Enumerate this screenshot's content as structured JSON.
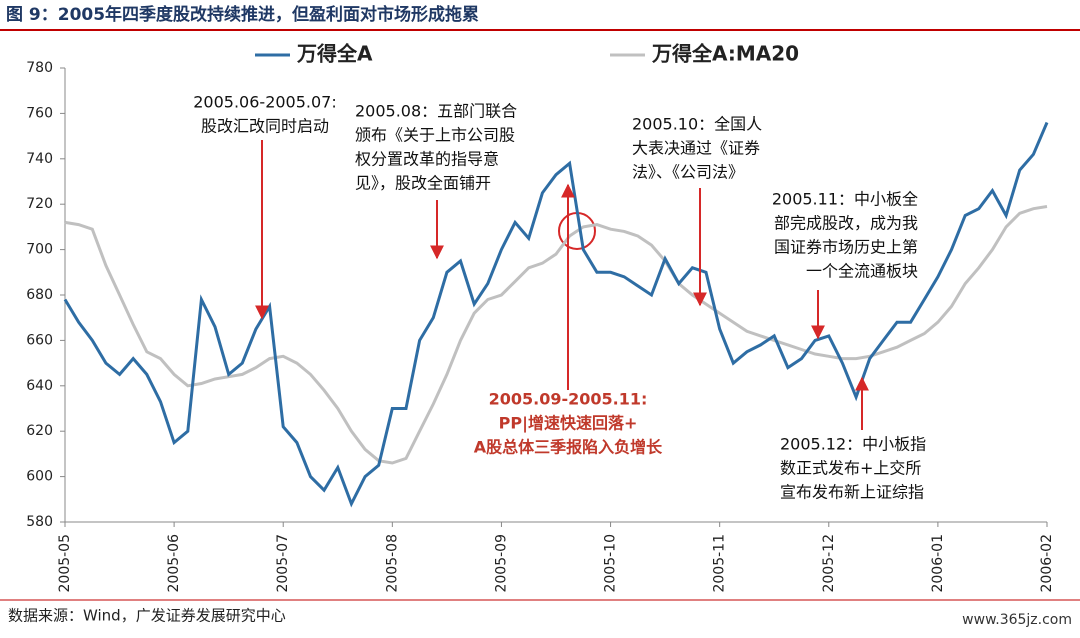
{
  "header": {
    "title": "图 9：2005年四季度股改持续推进，但盈利面对市场形成拖累"
  },
  "chart_data": {
    "type": "line",
    "categories": [
      "2005-05",
      null,
      null,
      null,
      null,
      null,
      null,
      null,
      "2005-06",
      null,
      null,
      null,
      null,
      null,
      null,
      null,
      "2005-07",
      null,
      null,
      null,
      null,
      null,
      null,
      null,
      "2005-08",
      null,
      null,
      null,
      null,
      null,
      null,
      null,
      "2005-09",
      null,
      null,
      null,
      null,
      null,
      null,
      null,
      "2005-10",
      null,
      null,
      null,
      null,
      null,
      null,
      null,
      "2005-11",
      null,
      null,
      null,
      null,
      null,
      null,
      null,
      "2005-12",
      null,
      null,
      null,
      null,
      null,
      null,
      null,
      "2006-01",
      null,
      null,
      null,
      null,
      null,
      null,
      null,
      "2006-02"
    ],
    "series": [
      {
        "name": "万得全A",
        "color": "#2e6da4",
        "values": [
          678,
          668,
          660,
          650,
          645,
          652,
          645,
          633,
          615,
          620,
          678,
          666,
          645,
          650,
          665,
          675,
          622,
          615,
          600,
          594,
          604,
          588,
          600,
          605,
          630,
          630,
          660,
          670,
          690,
          695,
          676,
          685,
          700,
          712,
          705,
          725,
          733,
          738,
          700,
          690,
          690,
          688,
          684,
          680,
          696,
          685,
          692,
          690,
          665,
          650,
          655,
          658,
          662,
          648,
          652,
          660,
          662,
          650,
          635,
          652,
          660,
          668,
          668,
          678,
          688,
          700,
          715,
          718,
          726,
          715,
          735,
          742,
          756
        ]
      },
      {
        "name": "万得全A:MA20",
        "color": "#c0c0c0",
        "values": [
          712,
          711,
          709,
          693,
          680,
          667,
          655,
          652,
          645,
          640,
          641,
          643,
          644,
          645,
          648,
          652,
          653,
          650,
          645,
          638,
          630,
          620,
          612,
          607,
          606,
          608,
          620,
          632,
          645,
          660,
          672,
          678,
          680,
          686,
          692,
          694,
          698,
          706,
          710,
          711,
          709,
          708,
          706,
          702,
          695,
          685,
          680,
          676,
          672,
          668,
          664,
          662,
          660,
          658,
          656,
          654,
          653,
          652,
          652,
          653,
          655,
          657,
          660,
          663,
          668,
          675,
          685,
          692,
          700,
          710,
          716,
          718,
          719
        ]
      }
    ],
    "ylim": [
      580,
      780
    ],
    "yticks": [
      580,
      600,
      620,
      640,
      660,
      680,
      700,
      720,
      740,
      760,
      780
    ],
    "annotations": [
      {
        "lines": [
          "2005.06-2005.07:",
          "股改汇改同时启动"
        ]
      },
      {
        "lines": [
          "2005.08：五部门联合",
          "颁布《关于上市公司股",
          "权分置改革的指导意",
          "见》，股改全面铺开"
        ]
      },
      {
        "lines": [
          "2005.10：全国人",
          "大表决通过《证券",
          "法》、《公司法》"
        ]
      },
      {
        "lines": [
          "2005.11：中小板全",
          "部完成股改，成为我",
          "国证券市场历史上第",
          "一个全流通板块"
        ]
      },
      {
        "lines": [
          "2005.09-2005.11:",
          "PP|增速快速回落+",
          "A股总体三季报陷入负增长"
        ],
        "color": "#c0392b"
      },
      {
        "lines": [
          "2005.12：中小板指",
          "数正式发布+上交所",
          "宣布发布新上证综指"
        ]
      }
    ]
  },
  "footer": {
    "source": "数据来源：Wind，广发证券发展研究中心",
    "watermark": "www.365jz.com"
  }
}
